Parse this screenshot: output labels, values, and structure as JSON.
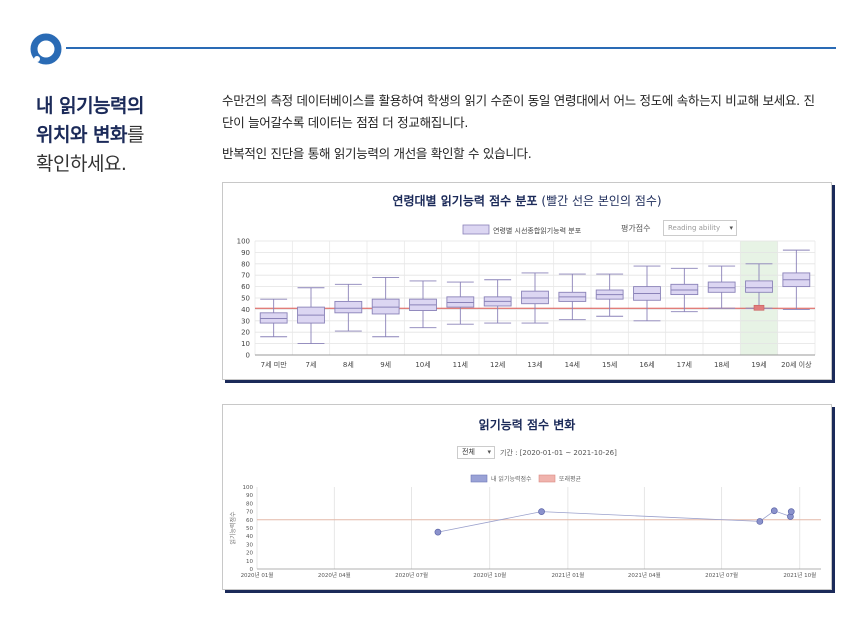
{
  "heading": {
    "line1": "내 읽기능력의",
    "line2_bold": "위치와 변화",
    "line2_tail": "를",
    "line3": "확인하세요."
  },
  "description": {
    "p1": "수만건의 측정 데이터베이스를 활용하여 학생의 읽기 수준이 동일 연령대에서 어느 정도에 속하는지 비교해 보세요. 진단이 늘어갈수록 데이터는 점점 더 정교해집니다.",
    "p2": "반복적인 진단을 통해 읽기능력의 개선을 확인할 수 있습니다."
  },
  "colors": {
    "accent": "#2a6bb5",
    "navy": "#1b2a59",
    "box_fill": "#dcd6f2",
    "box_stroke": "#8a82b8",
    "red_line": "#d9534f",
    "highlight": "#e7f3e5"
  },
  "chart_data": [
    {
      "type": "box",
      "title": "연령대별 읽기능력 점수 분포",
      "subtitle": "(빨간 선은 본인의 점수)",
      "legend": [
        "연령별 시선종합읽기능력 분포"
      ],
      "control_label": "평가점수",
      "control_value": "Reading ability",
      "categories": [
        "7세 미만",
        "7세",
        "8세",
        "9세",
        "10세",
        "11세",
        "12세",
        "13세",
        "14세",
        "15세",
        "16세",
        "17세",
        "18세",
        "19세",
        "20세 이상"
      ],
      "boxes": [
        {
          "min": 16,
          "q1": 28,
          "median": 32,
          "q3": 37,
          "max": 49
        },
        {
          "min": 10,
          "q1": 28,
          "median": 35,
          "q3": 42,
          "max": 59
        },
        {
          "min": 21,
          "q1": 37,
          "median": 41,
          "q3": 47,
          "max": 62
        },
        {
          "min": 16,
          "q1": 36,
          "median": 42,
          "q3": 49,
          "max": 68
        },
        {
          "min": 24,
          "q1": 39,
          "median": 44,
          "q3": 49,
          "max": 65
        },
        {
          "min": 27,
          "q1": 42,
          "median": 46,
          "q3": 51,
          "max": 64
        },
        {
          "min": 28,
          "q1": 43,
          "median": 47,
          "q3": 51,
          "max": 66
        },
        {
          "min": 28,
          "q1": 45,
          "median": 50,
          "q3": 56,
          "max": 72
        },
        {
          "min": 31,
          "q1": 47,
          "median": 51,
          "q3": 55,
          "max": 71
        },
        {
          "min": 34,
          "q1": 49,
          "median": 53,
          "q3": 57,
          "max": 71
        },
        {
          "min": 30,
          "q1": 48,
          "median": 54,
          "q3": 60,
          "max": 78
        },
        {
          "min": 38,
          "q1": 53,
          "median": 57,
          "q3": 62,
          "max": 76
        },
        {
          "min": 41,
          "q1": 55,
          "median": 59,
          "q3": 64,
          "max": 78
        },
        {
          "min": 41,
          "q1": 55,
          "median": 59,
          "q3": 65,
          "max": 80
        },
        {
          "min": 40,
          "q1": 60,
          "median": 66,
          "q3": 72,
          "max": 92
        }
      ],
      "own_score": 41,
      "highlight_index": 13,
      "ylim": [
        0,
        100
      ],
      "yticks": [
        0,
        10,
        20,
        30,
        40,
        50,
        60,
        70,
        80,
        90,
        100
      ]
    },
    {
      "type": "line",
      "title": "읽기능력 점수 변화",
      "filter_value": "전체",
      "period_label": "기간 : [2020-01-01 ~ 2021-10-26]",
      "legend": [
        "내 읽기능력점수",
        "또래평균"
      ],
      "ylabel": "읽기능력점수",
      "ylim": [
        0,
        100
      ],
      "yticks": [
        0,
        10,
        20,
        30,
        40,
        50,
        60,
        70,
        80,
        90,
        100
      ],
      "xticks": [
        "2020년 01월",
        "2020년 04월",
        "2020년 07월",
        "2020년 10월",
        "2021년 01월",
        "2021년 04월",
        "2021년 07월",
        "2021년 10월"
      ],
      "series": [
        {
          "name": "내 읽기능력점수",
          "points": [
            {
              "x": "2020-08-01",
              "y": 45
            },
            {
              "x": "2020-12-01",
              "y": 70
            },
            {
              "x": "2021-08-15",
              "y": 58
            },
            {
              "x": "2021-09-01",
              "y": 71
            },
            {
              "x": "2021-09-20",
              "y": 64
            },
            {
              "x": "2021-09-21",
              "y": 70
            }
          ]
        },
        {
          "name": "또래평균",
          "value": 60
        }
      ]
    }
  ]
}
